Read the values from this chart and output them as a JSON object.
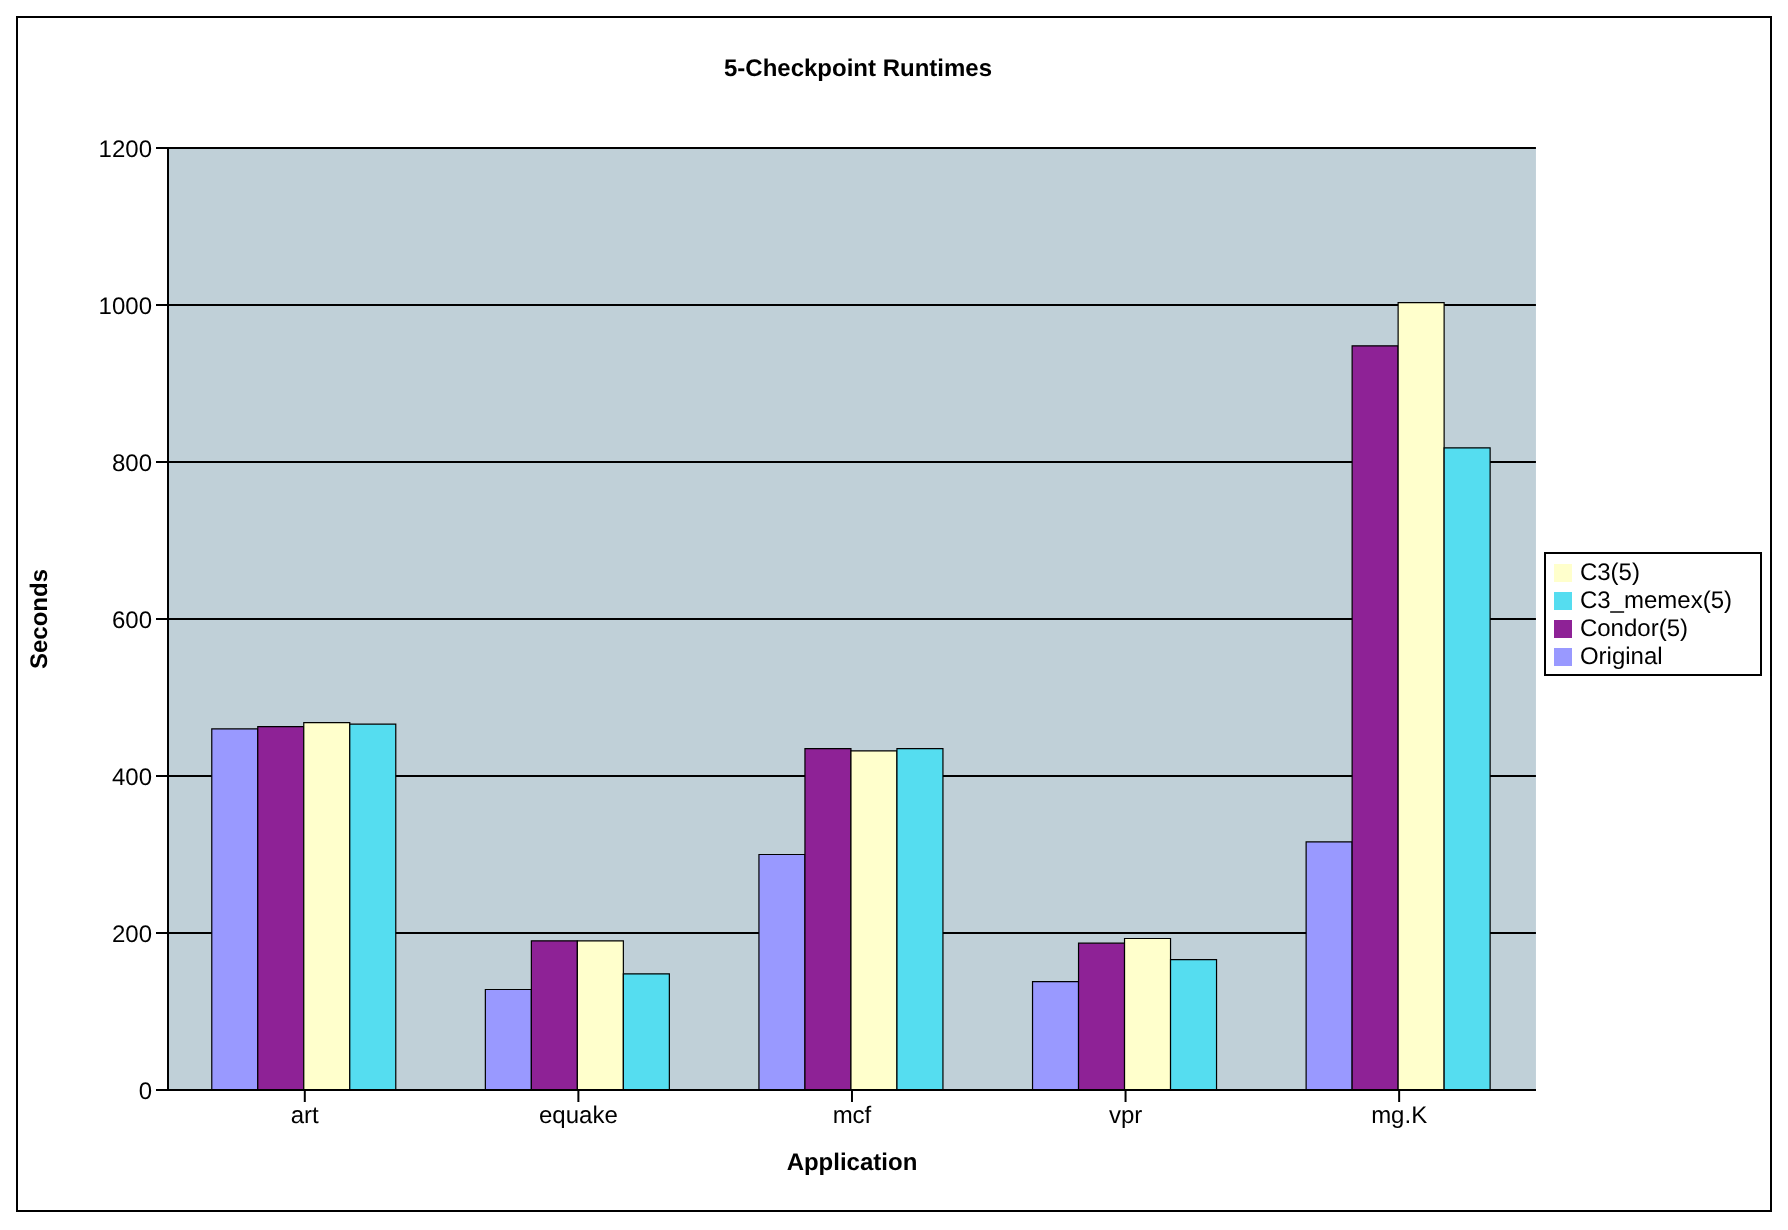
{
  "chart_data": {
    "type": "bar",
    "title": "5-Checkpoint Runtimes",
    "xlabel": "Application",
    "ylabel": "Seconds",
    "categories": [
      "art",
      "equake",
      "mcf",
      "vpr",
      "mg.K"
    ],
    "series": [
      {
        "name": "Original",
        "color": "#9999ff",
        "values": [
          460,
          128,
          300,
          138,
          316
        ]
      },
      {
        "name": "Condor(5)",
        "color": "#8e2296",
        "values": [
          463,
          190,
          435,
          187,
          948
        ]
      },
      {
        "name": "C3(5)",
        "color": "#ffffcc",
        "values": [
          468,
          190,
          432,
          193,
          1003
        ]
      },
      {
        "name": "C3_memex(5)",
        "color": "#55ddf0",
        "values": [
          466,
          148,
          435,
          166,
          818
        ]
      }
    ],
    "ylim": [
      0,
      1200
    ],
    "yticks": [
      0,
      200,
      400,
      600,
      800,
      1000,
      1200
    ],
    "grid": "y",
    "legend": "right"
  }
}
